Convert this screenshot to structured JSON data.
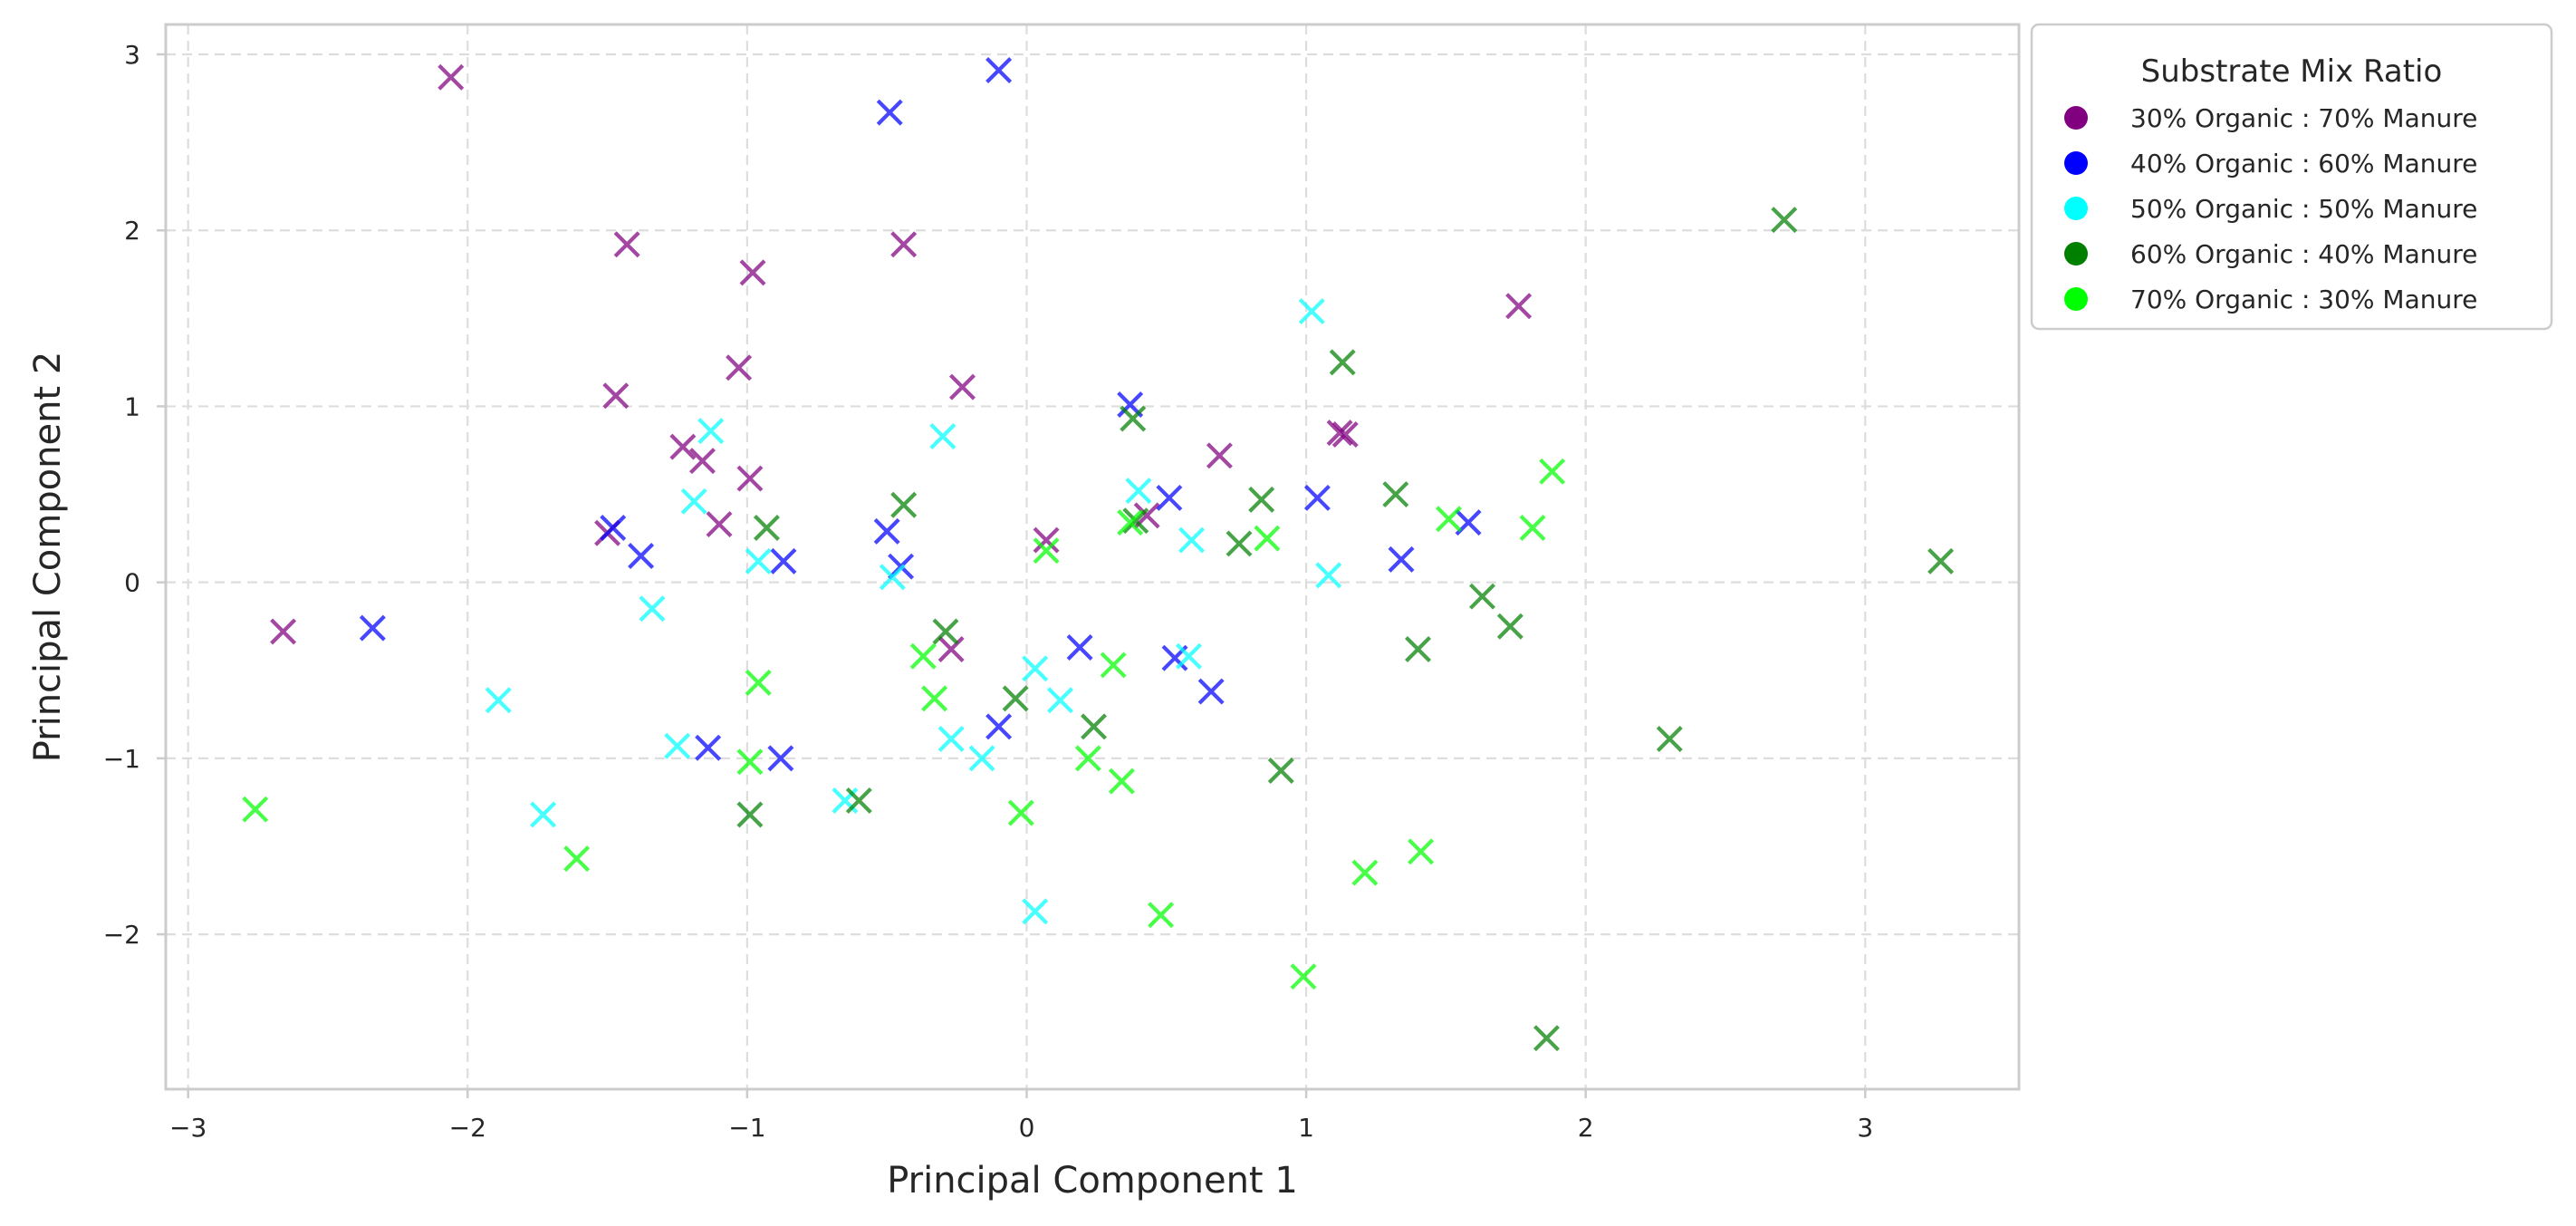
{
  "chart_data": {
    "type": "scatter",
    "xlabel": "Principal Component 1",
    "ylabel": "Principal Component 2",
    "xlim": [
      -3.08,
      3.55
    ],
    "ylim": [
      -2.88,
      3.17
    ],
    "xticks": [
      -3,
      -2,
      -1,
      0,
      1,
      2,
      3
    ],
    "yticks": [
      -2,
      -1,
      0,
      1,
      2,
      3
    ],
    "tick_labels_x": [
      "−3",
      "−2",
      "−1",
      "0",
      "1",
      "2",
      "3"
    ],
    "tick_labels_y": [
      "−2",
      "−1",
      "0",
      "1",
      "2",
      "3"
    ],
    "grid": true,
    "marker": "x",
    "legend": {
      "title": "Substrate Mix Ratio",
      "placement": "outside-top-right"
    },
    "series": [
      {
        "name": "30% Organic : 70% Manure",
        "color": "#800080",
        "points": [
          [
            -2.06,
            2.87
          ],
          [
            -1.43,
            1.92
          ],
          [
            -0.98,
            1.76
          ],
          [
            -0.44,
            1.92
          ],
          [
            -1.47,
            1.06
          ],
          [
            -1.03,
            1.22
          ],
          [
            -0.23,
            1.11
          ],
          [
            -1.23,
            0.77
          ],
          [
            -1.16,
            0.69
          ],
          [
            -0.99,
            0.59
          ],
          [
            -1.1,
            0.33
          ],
          [
            -1.5,
            0.28
          ],
          [
            -2.66,
            -0.28
          ],
          [
            -0.27,
            -0.38
          ],
          [
            0.07,
            0.24
          ],
          [
            0.43,
            0.38
          ],
          [
            0.69,
            0.72
          ],
          [
            1.12,
            0.85
          ],
          [
            1.14,
            0.84
          ],
          [
            1.76,
            1.57
          ]
        ]
      },
      {
        "name": "40% Organic : 60% Manure",
        "color": "#0000FF",
        "points": [
          [
            -0.1,
            2.91
          ],
          [
            -0.49,
            2.67
          ],
          [
            -1.48,
            0.31
          ],
          [
            -1.38,
            0.15
          ],
          [
            -0.87,
            0.12
          ],
          [
            -2.34,
            -0.26
          ],
          [
            -0.5,
            0.29
          ],
          [
            -0.45,
            0.09
          ],
          [
            0.37,
            1.01
          ],
          [
            0.51,
            0.48
          ],
          [
            1.04,
            0.48
          ],
          [
            1.58,
            0.34
          ],
          [
            1.34,
            0.13
          ],
          [
            0.19,
            -0.37
          ],
          [
            0.53,
            -0.43
          ],
          [
            0.66,
            -0.62
          ],
          [
            -0.1,
            -0.82
          ],
          [
            -1.14,
            -0.94
          ],
          [
            -0.88,
            -1.0
          ]
        ]
      },
      {
        "name": "50% Organic : 50% Manure",
        "color": "#00FFFF",
        "points": [
          [
            1.02,
            1.54
          ],
          [
            -1.13,
            0.86
          ],
          [
            -0.3,
            0.83
          ],
          [
            -1.19,
            0.46
          ],
          [
            -0.96,
            0.12
          ],
          [
            -1.34,
            -0.15
          ],
          [
            -0.48,
            0.03
          ],
          [
            0.4,
            0.52
          ],
          [
            0.59,
            0.24
          ],
          [
            1.08,
            0.04
          ],
          [
            -1.89,
            -0.67
          ],
          [
            -1.25,
            -0.93
          ],
          [
            -0.27,
            -0.89
          ],
          [
            -0.16,
            -1.0
          ],
          [
            0.03,
            -0.49
          ],
          [
            0.12,
            -0.67
          ],
          [
            0.58,
            -0.42
          ],
          [
            -1.73,
            -1.32
          ],
          [
            -0.65,
            -1.24
          ],
          [
            0.03,
            -1.87
          ]
        ]
      },
      {
        "name": "60% Organic : 40% Manure",
        "color": "#008000",
        "points": [
          [
            2.71,
            2.06
          ],
          [
            1.13,
            1.25
          ],
          [
            0.38,
            0.93
          ],
          [
            -0.44,
            0.44
          ],
          [
            -0.93,
            0.31
          ],
          [
            0.39,
            0.35
          ],
          [
            0.76,
            0.22
          ],
          [
            0.84,
            0.47
          ],
          [
            1.32,
            0.5
          ],
          [
            3.27,
            0.12
          ],
          [
            1.63,
            -0.08
          ],
          [
            1.73,
            -0.25
          ],
          [
            1.4,
            -0.38
          ],
          [
            -0.29,
            -0.28
          ],
          [
            -0.04,
            -0.66
          ],
          [
            0.24,
            -0.82
          ],
          [
            0.91,
            -1.07
          ],
          [
            -0.6,
            -1.24
          ],
          [
            -0.99,
            -1.32
          ],
          [
            2.3,
            -0.89
          ],
          [
            1.86,
            -2.59
          ]
        ]
      },
      {
        "name": "70% Organic : 30% Manure",
        "color": "#00FF00",
        "points": [
          [
            1.88,
            0.63
          ],
          [
            1.81,
            0.31
          ],
          [
            1.51,
            0.36
          ],
          [
            0.86,
            0.25
          ],
          [
            0.37,
            0.34
          ],
          [
            0.07,
            0.18
          ],
          [
            -0.96,
            -0.57
          ],
          [
            -0.37,
            -0.42
          ],
          [
            -0.33,
            -0.66
          ],
          [
            0.31,
            -0.47
          ],
          [
            -0.99,
            -1.02
          ],
          [
            0.22,
            -1.0
          ],
          [
            0.34,
            -1.13
          ],
          [
            -0.02,
            -1.31
          ],
          [
            -2.76,
            -1.29
          ],
          [
            -1.61,
            -1.57
          ],
          [
            0.48,
            -1.89
          ],
          [
            1.21,
            -1.65
          ],
          [
            1.41,
            -1.53
          ],
          [
            0.99,
            -2.24
          ]
        ]
      }
    ]
  }
}
